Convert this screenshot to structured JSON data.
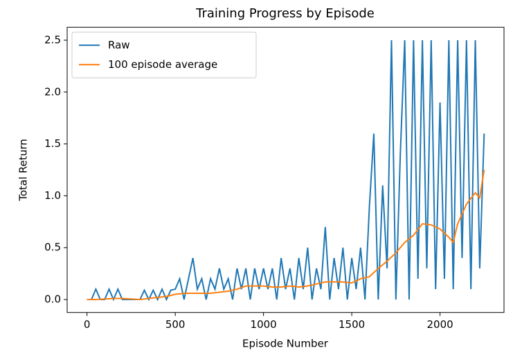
{
  "chart_data": {
    "type": "line",
    "title": "Training Progress by Episode",
    "x_label": "Episode Number",
    "y_label": "Total Return",
    "xlim": [
      -112.5,
      2362.5
    ],
    "xticks": [
      0,
      500,
      1000,
      1500,
      2000
    ],
    "ylim": [
      -0.125,
      2.625
    ],
    "yticks": [
      {
        "value": 0,
        "label": "0.0"
      },
      {
        "value": 0.5,
        "label": "0.5"
      },
      {
        "value": 1,
        "label": "1.0"
      },
      {
        "value": 1.5,
        "label": "1.5"
      },
      {
        "value": 2,
        "label": "2.0"
      },
      {
        "value": 2.5,
        "label": "2.5"
      }
    ],
    "legend": "upper left",
    "series": [
      {
        "name": "Raw",
        "color": "#1f77b4",
        "x": [
          0,
          25,
          50,
          75,
          100,
          125,
          150,
          175,
          200,
          225,
          250,
          275,
          300,
          325,
          350,
          375,
          400,
          425,
          450,
          475,
          500,
          525,
          550,
          575,
          600,
          625,
          650,
          675,
          700,
          725,
          750,
          775,
          800,
          825,
          850,
          875,
          900,
          925,
          950,
          975,
          1000,
          1025,
          1050,
          1075,
          1100,
          1125,
          1150,
          1175,
          1200,
          1225,
          1250,
          1275,
          1300,
          1325,
          1350,
          1375,
          1400,
          1425,
          1450,
          1475,
          1500,
          1525,
          1550,
          1575,
          1600,
          1625,
          1650,
          1675,
          1700,
          1725,
          1750,
          1775,
          1800,
          1825,
          1850,
          1875,
          1900,
          1925,
          1950,
          1975,
          2000,
          2025,
          2050,
          2075,
          2100,
          2125,
          2150,
          2175,
          2200,
          2225,
          2250
        ],
        "values": [
          0,
          0,
          0.1,
          0,
          0,
          0.1,
          0,
          0.1,
          0,
          0,
          0,
          0,
          0,
          0.09,
          0,
          0.09,
          0,
          0.1,
          0,
          0.09,
          0.1,
          0.2,
          0,
          0.2,
          0.4,
          0.1,
          0.2,
          0,
          0.2,
          0.1,
          0.3,
          0.1,
          0.2,
          0,
          0.3,
          0.1,
          0.3,
          0,
          0.3,
          0.1,
          0.3,
          0.1,
          0.3,
          0,
          0.4,
          0.1,
          0.3,
          0,
          0.4,
          0.1,
          0.5,
          0,
          0.3,
          0.1,
          0.7,
          0,
          0.4,
          0.1,
          0.5,
          0,
          0.4,
          0.1,
          0.5,
          0,
          0.9,
          1.6,
          0,
          1.1,
          0.3,
          2.5,
          0,
          1.4,
          2.5,
          0,
          2.5,
          0.2,
          2.5,
          0.3,
          2.5,
          0.1,
          1.9,
          0.2,
          2.5,
          0.1,
          2.5,
          0.4,
          2.5,
          0.1,
          2.5,
          0.3,
          1.6
        ]
      },
      {
        "name": "100 episode average",
        "color": "#ff7f0e",
        "x": [
          0,
          50,
          100,
          150,
          200,
          250,
          300,
          350,
          400,
          450,
          500,
          550,
          600,
          650,
          700,
          750,
          800,
          850,
          900,
          950,
          1000,
          1050,
          1100,
          1150,
          1200,
          1250,
          1300,
          1350,
          1400,
          1450,
          1500,
          1550,
          1600,
          1650,
          1700,
          1750,
          1800,
          1850,
          1900,
          1950,
          2000,
          2050,
          2075,
          2100,
          2150,
          2200,
          2225,
          2250
        ],
        "values": [
          0,
          0,
          0.005,
          0.01,
          0.01,
          0.005,
          0,
          0.01,
          0.02,
          0.03,
          0.05,
          0.06,
          0.06,
          0.06,
          0.06,
          0.07,
          0.08,
          0.1,
          0.13,
          0.13,
          0.13,
          0.12,
          0.12,
          0.13,
          0.12,
          0.13,
          0.15,
          0.17,
          0.17,
          0.17,
          0.16,
          0.2,
          0.22,
          0.3,
          0.37,
          0.45,
          0.55,
          0.62,
          0.73,
          0.72,
          0.68,
          0.6,
          0.55,
          0.73,
          0.92,
          1.03,
          0.98,
          1.25
        ]
      }
    ]
  }
}
